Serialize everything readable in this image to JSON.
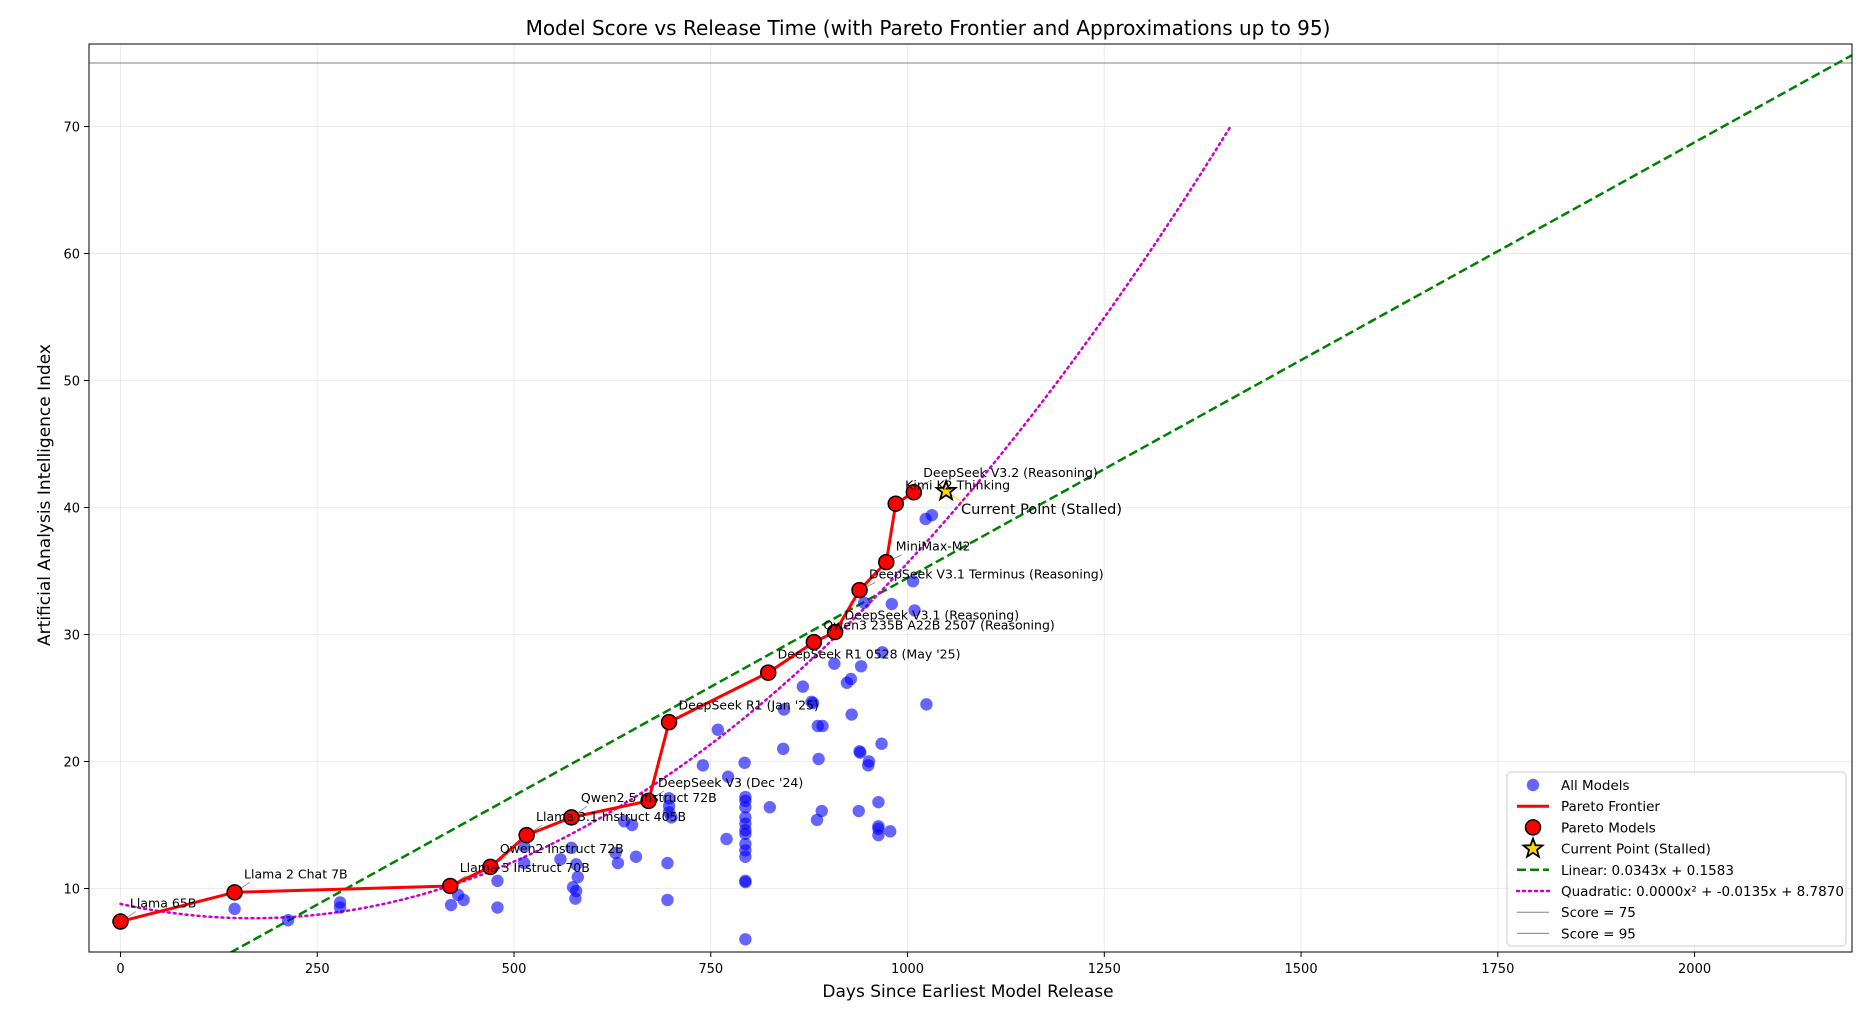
{
  "chart_data": {
    "type": "scatter",
    "title": "Model Score vs Release Time (with Pareto Frontier and Approximations up to 95)",
    "xlabel": "Days Since Earliest Model Release",
    "ylabel": "Artificial Analysis Intelligence Index",
    "xlim": [
      -40,
      2200
    ],
    "ylim": [
      5,
      76.5
    ],
    "xticks": [
      0,
      250,
      500,
      750,
      1000,
      1250,
      1500,
      1750,
      2000
    ],
    "yticks": [
      10,
      20,
      30,
      40,
      50,
      60,
      70
    ],
    "grid": true,
    "legend_position": "lower-right",
    "colors": {
      "all_models": "#0000ff",
      "pareto": "#ff0000",
      "linear": "#008000",
      "quadratic": "#cc00cc",
      "star": "#ffd700",
      "ref_line": "#808080"
    },
    "series": [
      {
        "name": "All Models",
        "kind": "scatter",
        "points": [
          [
            0,
            7.4
          ],
          [
            145,
            8.4
          ],
          [
            213,
            7.5
          ],
          [
            279,
            8.5
          ],
          [
            279,
            8.9
          ],
          [
            420,
            8.7
          ],
          [
            429,
            9.5
          ],
          [
            436,
            9.1
          ],
          [
            479,
            8.5
          ],
          [
            479,
            10.6
          ],
          [
            513,
            12.0
          ],
          [
            513,
            13.3
          ],
          [
            559,
            12.3
          ],
          [
            573,
            13.2
          ],
          [
            575,
            10.1
          ],
          [
            578,
            9.2
          ],
          [
            579,
            9.8
          ],
          [
            579,
            11.9
          ],
          [
            581,
            10.9
          ],
          [
            629,
            12.8
          ],
          [
            632,
            12.0
          ],
          [
            640,
            15.3
          ],
          [
            650,
            15.0
          ],
          [
            655,
            12.5
          ],
          [
            695,
            12.0
          ],
          [
            695,
            9.1
          ],
          [
            697,
            17.1
          ],
          [
            697,
            16.5
          ],
          [
            697,
            16.0
          ],
          [
            700,
            15.6
          ],
          [
            740,
            19.7
          ],
          [
            759,
            22.5
          ],
          [
            770,
            13.9
          ],
          [
            772,
            18.8
          ],
          [
            793,
            19.9
          ],
          [
            794,
            17.2
          ],
          [
            794,
            16.9
          ],
          [
            794,
            16.4
          ],
          [
            794,
            15.6
          ],
          [
            794,
            15.1
          ],
          [
            794,
            14.6
          ],
          [
            794,
            14.3
          ],
          [
            794,
            13.5
          ],
          [
            794,
            13.0
          ],
          [
            794,
            12.5
          ],
          [
            794,
            10.6
          ],
          [
            794,
            10.5
          ],
          [
            794,
            6.0
          ],
          [
            825,
            16.4
          ],
          [
            842,
            21.0
          ],
          [
            843,
            24.1
          ],
          [
            867,
            25.9
          ],
          [
            878,
            24.7
          ],
          [
            880,
            24.6
          ],
          [
            885,
            15.4
          ],
          [
            886,
            22.8
          ],
          [
            887,
            20.2
          ],
          [
            891,
            16.1
          ],
          [
            892,
            22.8
          ],
          [
            907,
            27.7
          ],
          [
            923,
            26.2
          ],
          [
            928,
            26.5
          ],
          [
            929,
            23.7
          ],
          [
            938,
            16.1
          ],
          [
            939,
            20.8
          ],
          [
            940,
            20.7
          ],
          [
            941,
            27.5
          ],
          [
            945,
            32.5
          ],
          [
            950,
            19.7
          ],
          [
            951,
            20.0
          ],
          [
            963,
            16.8
          ],
          [
            963,
            14.9
          ],
          [
            963,
            14.2
          ],
          [
            963,
            14.7
          ],
          [
            967,
            21.4
          ],
          [
            968,
            28.6
          ],
          [
            978,
            14.5
          ],
          [
            980,
            32.4
          ],
          [
            1007,
            34.2
          ],
          [
            1009,
            31.9
          ],
          [
            1023,
            39.1
          ],
          [
            1024,
            24.5
          ],
          [
            1031,
            39.4
          ]
        ]
      },
      {
        "name": "Pareto Frontier",
        "kind": "line",
        "points": [
          [
            0,
            7.4
          ],
          [
            145,
            9.7
          ],
          [
            419,
            10.2
          ],
          [
            470,
            11.7
          ],
          [
            516,
            14.2
          ],
          [
            573,
            15.6
          ],
          [
            671,
            16.9
          ],
          [
            697,
            23.1
          ],
          [
            823,
            27.0
          ],
          [
            881,
            29.4
          ],
          [
            908,
            30.2
          ],
          [
            939,
            33.5
          ],
          [
            973,
            35.7
          ],
          [
            985,
            40.3
          ],
          [
            1008,
            41.2
          ]
        ]
      },
      {
        "name": "Current Point (Stalled)",
        "kind": "star",
        "points": [
          [
            1049,
            41.3
          ]
        ]
      },
      {
        "name": "Linear: 0.0343x + 0.1583",
        "kind": "linear",
        "coefficients": [
          0.0343,
          0.1583
        ],
        "x_range": [
          140,
          2200
        ]
      },
      {
        "name": "Quadratic: 0.0000x² + -0.0135x + 8.7870",
        "kind": "quadratic",
        "coefficients": [
          4.035e-05,
          -0.0135,
          8.787
        ],
        "x_range": [
          0,
          1410
        ]
      },
      {
        "name": "Score = 75",
        "kind": "hline",
        "y": 75
      },
      {
        "name": "Score = 95",
        "kind": "hline",
        "y": 95
      }
    ],
    "pareto_labels": [
      {
        "text": "Llama 65B",
        "point": [
          0,
          7.4
        ],
        "text_at": [
          12,
          8.5
        ]
      },
      {
        "text": "Llama 2 Chat 7B",
        "point": [
          145,
          9.7
        ],
        "text_at": [
          157,
          10.8
        ]
      },
      {
        "text": "Llama 3 Instruct 70B",
        "point": [
          419,
          10.2
        ],
        "text_at": [
          431,
          11.3
        ]
      },
      {
        "text": "Qwen2 Instruct 72B",
        "point": [
          470,
          11.7
        ],
        "text_at": [
          482,
          12.8
        ]
      },
      {
        "text": "Llama 3.1 Instruct 405B",
        "point": [
          516,
          14.2
        ],
        "text_at": [
          528,
          15.3
        ]
      },
      {
        "text": "Qwen2.5 Instruct 72B",
        "point": [
          573,
          15.6
        ],
        "text_at": [
          585,
          16.8
        ]
      },
      {
        "text": "DeepSeek V3 (Dec '24)",
        "point": [
          671,
          16.9
        ],
        "text_at": [
          683,
          18.0
        ]
      },
      {
        "text": "DeepSeek R1 (Jan '25)",
        "point": [
          697,
          23.1
        ],
        "text_at": [
          709,
          24.1
        ]
      },
      {
        "text": "DeepSeek R1 0528 (May '25)",
        "point": [
          823,
          27.0
        ],
        "text_at": [
          835,
          28.1
        ]
      },
      {
        "text": "Qwen3 235B A22B 2507 (Reasoning)",
        "point": [
          881,
          29.4
        ],
        "text_at": [
          893,
          30.4
        ]
      },
      {
        "text": "DeepSeek V3.1 (Reasoning)",
        "point": [
          908,
          30.2
        ],
        "text_at": [
          920,
          31.2
        ]
      },
      {
        "text": "DeepSeek V3.1 Terminus (Reasoning)",
        "point": [
          939,
          33.5
        ],
        "text_at": [
          951,
          34.4
        ]
      },
      {
        "text": "MiniMax-M2",
        "point": [
          973,
          35.7
        ],
        "text_at": [
          985,
          36.6
        ]
      },
      {
        "text": "Kimi K2 Thinking",
        "point": [
          985,
          40.3
        ],
        "text_at": [
          997,
          41.4
        ]
      },
      {
        "text": "DeepSeek V3.2 (Reasoning)",
        "point": [
          1008,
          41.2
        ],
        "text_at": [
          1020,
          42.4
        ]
      }
    ],
    "star_label": {
      "text": "Current Point (Stalled)",
      "point": [
        1049,
        41.3
      ],
      "text_at": [
        1068,
        39.9
      ]
    }
  }
}
